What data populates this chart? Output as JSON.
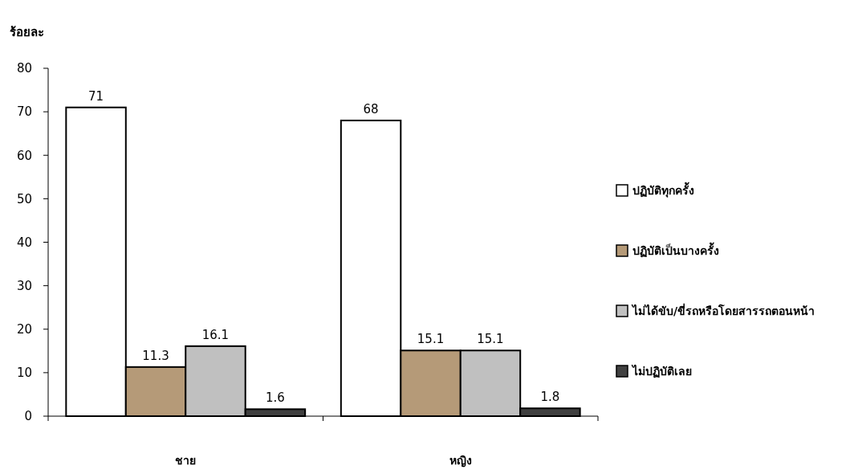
{
  "chart_data": {
    "type": "bar",
    "ylabel": "ร้อยละ",
    "categories": [
      "ชาย",
      "หญิง"
    ],
    "series": [
      {
        "name": "ปฏิบัติทุกครั้ง",
        "color": "#ffffff",
        "values": [
          71,
          68
        ]
      },
      {
        "name": "ปฏิบัติเป็นบางครั้ง",
        "color": "#b59a78",
        "values": [
          11.3,
          15.1
        ]
      },
      {
        "name": "ไม่ได้ขับ/ขี่รถหรือโดยสารรถตอนหน้า",
        "color": "#c0c0c0",
        "values": [
          16.1,
          15.1
        ]
      },
      {
        "name": "ไม่ปฏิบัติเลย",
        "color": "#404040",
        "values": [
          1.6,
          1.8
        ]
      }
    ],
    "ylim": [
      0,
      80
    ],
    "yticks": [
      0,
      10,
      20,
      30,
      40,
      50,
      60,
      70,
      80
    ],
    "grid": false,
    "legend": "right",
    "data_labels": true
  }
}
